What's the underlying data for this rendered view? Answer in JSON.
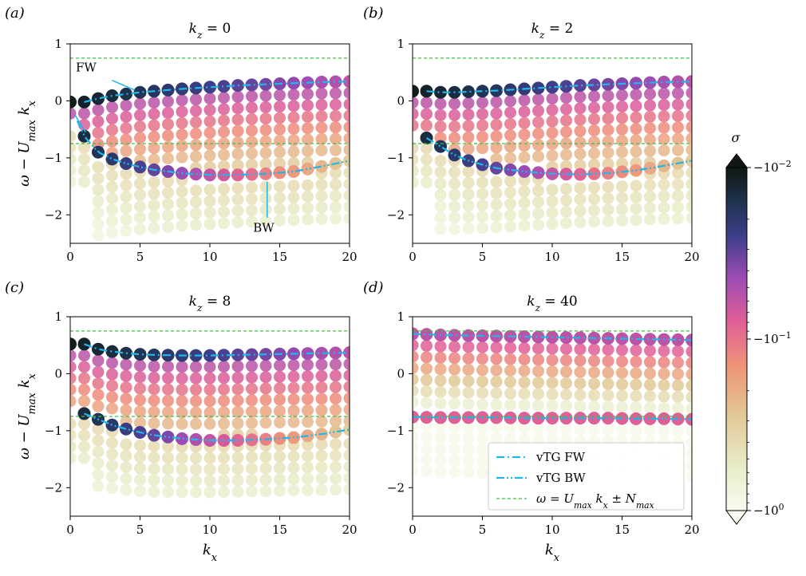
{
  "figure": {
    "panel_letters": [
      "(a)",
      "(b)",
      "(c)",
      "(d)"
    ],
    "y_axis_label": "ω − U_max k_x",
    "x_axis_label": "k_x"
  },
  "colorbar": {
    "label": "σ",
    "ticks": [
      {
        "value": -0.01,
        "label": "−10^−2"
      },
      {
        "value": -0.1,
        "label": "−10^−1"
      },
      {
        "value": -1,
        "label": "−10^0"
      }
    ],
    "range": [
      -1,
      -0.01
    ],
    "scale": "log",
    "colors": [
      "#f8fbf0",
      "#e9eecb",
      "#e2c896",
      "#ef9478",
      "#e05f96",
      "#9c4bb4",
      "#3d3f8a",
      "#1f3350",
      "#0f1712"
    ]
  },
  "legend": {
    "placement": "lower-right of panel (d)",
    "entries": [
      {
        "label": "vTG FW",
        "style": "dash-dot",
        "color": "#1fb6e8"
      },
      {
        "label": "vTG BW",
        "style": "dash-dot-dot",
        "color": "#1fb6e8"
      },
      {
        "label": "ω = U_max k_x ± N_max",
        "style": "dashed",
        "color": "#3fbf3f"
      }
    ]
  },
  "annotations": [
    {
      "text": "FW",
      "panel": 0,
      "color": "#1fb6e8"
    },
    {
      "text": "BW",
      "panel": 0,
      "color": "#1fb6e8"
    }
  ],
  "chart_data": [
    {
      "type": "scatter",
      "title": "k_z = 0",
      "xlim": [
        0,
        20
      ],
      "ylim": [
        -2.5,
        1
      ],
      "xticks": [
        0,
        5,
        10,
        15,
        20
      ],
      "yticks": [
        1,
        0,
        -1,
        -2
      ],
      "n_max_line": 0.75,
      "fw_curve": {
        "x": [
          1,
          2,
          3,
          4,
          5,
          6,
          8,
          10,
          12,
          14,
          16,
          18,
          20
        ],
        "y": [
          -0.02,
          0.04,
          0.09,
          0.12,
          0.15,
          0.17,
          0.21,
          0.24,
          0.27,
          0.29,
          0.31,
          0.33,
          0.34
        ]
      },
      "bw_curve": {
        "x": [
          0.5,
          1,
          2,
          3,
          4,
          5,
          6,
          8,
          10,
          12,
          14,
          16,
          18,
          20
        ],
        "y": [
          -0.35,
          -0.62,
          -0.9,
          -1.02,
          -1.1,
          -1.16,
          -1.21,
          -1.27,
          -1.3,
          -1.3,
          -1.28,
          -1.24,
          -1.15,
          -1.05
        ]
      }
    },
    {
      "type": "scatter",
      "title": "k_z = 2",
      "xlim": [
        0,
        20
      ],
      "ylim": [
        -2.5,
        1
      ],
      "xticks": [
        0,
        5,
        10,
        15,
        20
      ],
      "yticks": [
        1,
        0,
        -1,
        -2
      ],
      "n_max_line": 0.75,
      "fw_curve": {
        "x": [
          1,
          2,
          3,
          4,
          5,
          6,
          8,
          10,
          12,
          14,
          16,
          18,
          20
        ],
        "y": [
          0.17,
          0.15,
          0.15,
          0.16,
          0.17,
          0.18,
          0.21,
          0.24,
          0.27,
          0.29,
          0.31,
          0.33,
          0.34
        ]
      },
      "bw_curve": {
        "x": [
          1,
          2,
          3,
          4,
          5,
          6,
          8,
          10,
          12,
          14,
          16,
          18,
          20
        ],
        "y": [
          -0.65,
          -0.8,
          -0.95,
          -1.05,
          -1.12,
          -1.18,
          -1.24,
          -1.28,
          -1.29,
          -1.27,
          -1.22,
          -1.14,
          -1.05
        ]
      }
    },
    {
      "type": "scatter",
      "title": "k_z = 8",
      "xlim": [
        0,
        20
      ],
      "ylim": [
        -2.5,
        1
      ],
      "xticks": [
        0,
        5,
        10,
        15,
        20
      ],
      "yticks": [
        1,
        0,
        -1,
        -2
      ],
      "n_max_line": 0.75,
      "fw_curve": {
        "x": [
          1,
          2,
          3,
          4,
          5,
          6,
          8,
          10,
          12,
          14,
          16,
          18,
          20
        ],
        "y": [
          0.52,
          0.43,
          0.39,
          0.36,
          0.34,
          0.33,
          0.32,
          0.32,
          0.33,
          0.34,
          0.35,
          0.36,
          0.37
        ]
      },
      "bw_curve": {
        "x": [
          1,
          2,
          3,
          4,
          5,
          6,
          8,
          10,
          12,
          14,
          16,
          18,
          20
        ],
        "y": [
          -0.7,
          -0.8,
          -0.9,
          -0.97,
          -1.03,
          -1.08,
          -1.14,
          -1.17,
          -1.17,
          -1.15,
          -1.12,
          -1.06,
          -0.98
        ]
      }
    },
    {
      "type": "scatter",
      "title": "k_z = 40",
      "xlim": [
        0,
        20
      ],
      "ylim": [
        -2.5,
        1
      ],
      "xticks": [
        0,
        5,
        10,
        15,
        20
      ],
      "yticks": [
        1,
        0,
        -1,
        -2
      ],
      "n_max_line": 0.75,
      "fw_curve": {
        "x": [
          0,
          2,
          4,
          6,
          8,
          10,
          12,
          14,
          16,
          18,
          20
        ],
        "y": [
          0.7,
          0.68,
          0.67,
          0.66,
          0.65,
          0.64,
          0.63,
          0.62,
          0.61,
          0.6,
          0.59
        ]
      },
      "bw_curve": {
        "x": [
          0,
          2,
          4,
          6,
          8,
          10,
          12,
          14,
          16,
          18,
          20
        ],
        "y": [
          -0.76,
          -0.77,
          -0.77,
          -0.77,
          -0.78,
          -0.78,
          -0.78,
          -0.78,
          -0.79,
          -0.79,
          -0.8
        ]
      }
    }
  ]
}
